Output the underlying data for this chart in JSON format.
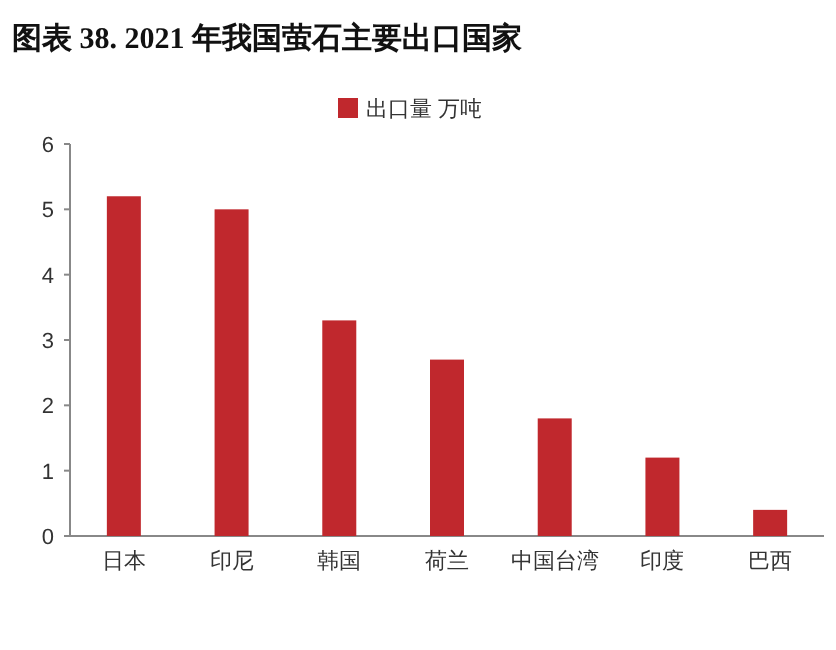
{
  "chart_data": {
    "type": "bar",
    "title": "图表 38. 2021 年我国萤石主要出口国家",
    "categories": [
      "日本",
      "印尼",
      "韩国",
      "荷兰",
      "中国台湾",
      "印度",
      "巴西"
    ],
    "series": [
      {
        "name": "出口量 万吨",
        "color": "#c0282d",
        "values": [
          5.2,
          5.0,
          3.3,
          2.7,
          1.8,
          1.2,
          0.4
        ]
      }
    ],
    "ylim": [
      0,
      6
    ],
    "yticks": [
      0,
      1,
      2,
      3,
      4,
      5,
      6
    ],
    "legend": "top",
    "grid": false
  }
}
